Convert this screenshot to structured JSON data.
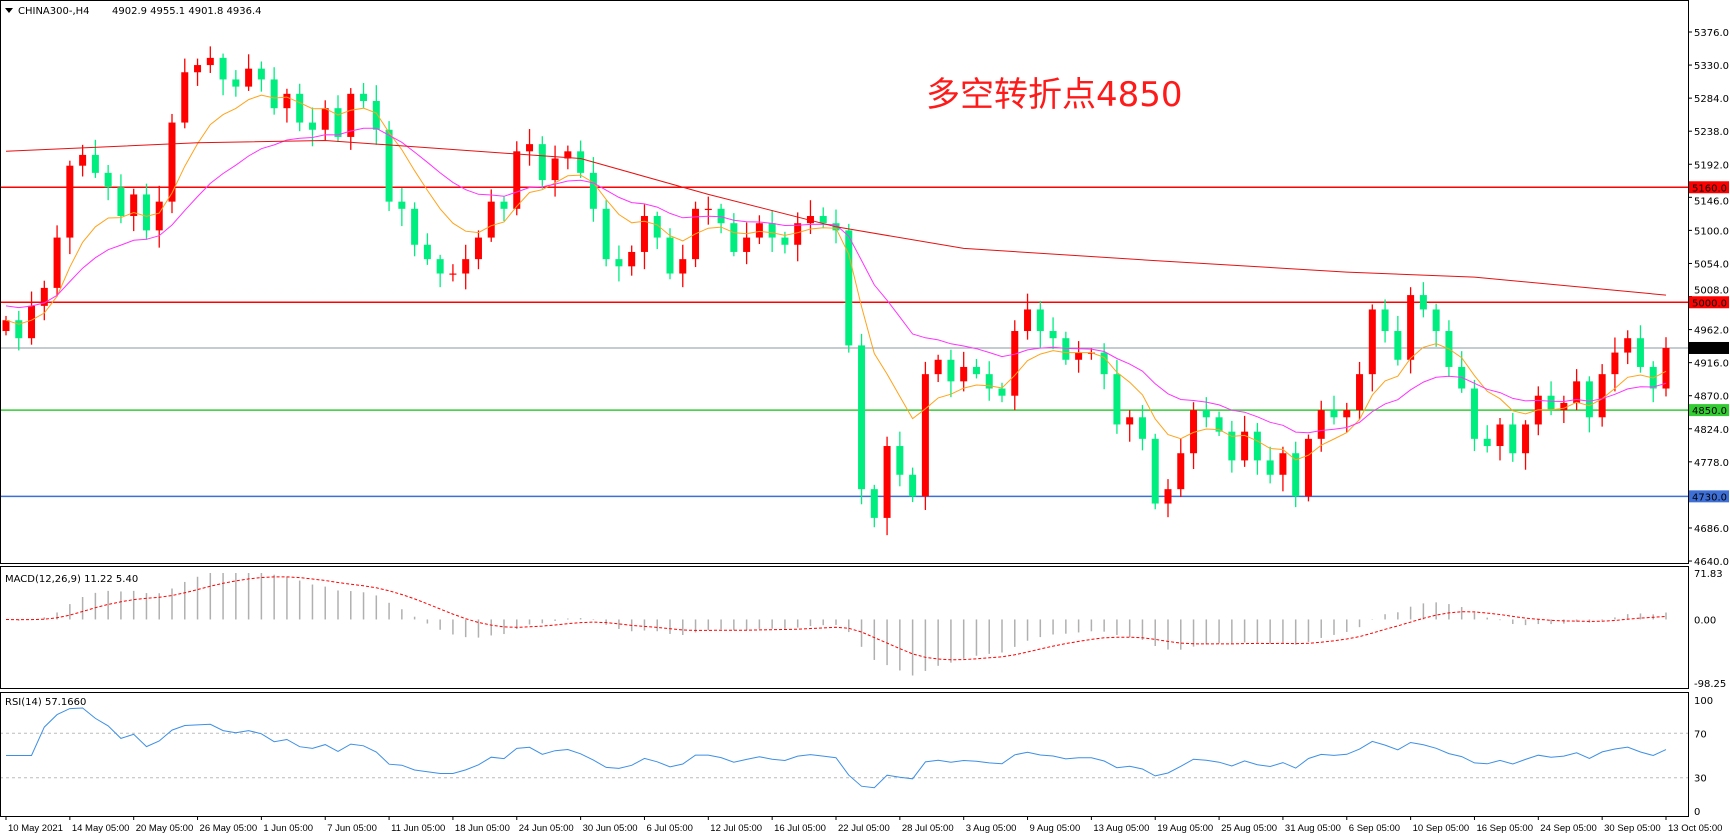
{
  "header": {
    "symbol": "CHINA300-,H4",
    "ohlc_text": "4902.9 4955.1 4901.8 4936.4"
  },
  "annotation": "多空转折点4850",
  "colors": {
    "up_candle": "#ff0000",
    "down_candle": "#00ee80",
    "ma_fast": "#ffa31a",
    "ma_mid": "#ff33ff",
    "ma_long": "#e81010",
    "macd_hist": "#b0b0b0",
    "macd_signal": "#ff0000",
    "rsi": "#3d8fe6",
    "level_5160": "#ff0000",
    "level_5000": "#ff0000",
    "level_4850": "#33cc33",
    "level_4730": "#3d6fd6",
    "current_price": "#8a9aa6"
  },
  "price_axis": {
    "ticks": [
      "5376.0",
      "5330.0",
      "5284.0",
      "5238.0",
      "5192.0",
      "5146.0",
      "5100.0",
      "5054.0",
      "5008.0",
      "4962.0",
      "4916.0",
      "4870.0",
      "4824.0",
      "4778.0",
      "4686.0",
      "4640.0"
    ],
    "range": [
      4640,
      5376
    ]
  },
  "levels": [
    {
      "value": 5160.0,
      "label": "5160.0",
      "color_key": "level_5160"
    },
    {
      "value": 5000.0,
      "label": "5000.0",
      "color_key": "level_5000"
    },
    {
      "value": 4850.0,
      "label": "4850.0",
      "color_key": "level_4850"
    },
    {
      "value": 4730.0,
      "label": "4730.0",
      "color_key": "level_4730"
    },
    {
      "value": 4936.4,
      "label": "4936.4",
      "color_key": "current_price"
    }
  ],
  "macd": {
    "label": "MACD(12,26,9) 11.22 5.40",
    "ticks": [
      "71.83",
      "0.00",
      "-98.25"
    ],
    "range": [
      -98.25,
      71.83
    ]
  },
  "rsi": {
    "label": "RSI(14) 57.1660",
    "ticks": [
      "100",
      "70",
      "30",
      "0"
    ],
    "levels": [
      70,
      30
    ]
  },
  "chart_data": {
    "type": "candlestick",
    "title": "CHINA300-,H4",
    "x_labels": [
      "10 May 2021",
      "14 May 05:00",
      "20 May 05:00",
      "26 May 05:00",
      "1 Jun 05:00",
      "7 Jun 05:00",
      "11 Jun 05:00",
      "18 Jun 05:00",
      "24 Jun 05:00",
      "30 Jun 05:00",
      "6 Jul 05:00",
      "12 Jul 05:00",
      "16 Jul 05:00",
      "22 Jul 05:00",
      "28 Jul 05:00",
      "3 Aug 05:00",
      "9 Aug 05:00",
      "13 Aug 05:00",
      "19 Aug 05:00",
      "25 Aug 05:00",
      "31 Aug 05:00",
      "6 Sep 05:00",
      "10 Sep 05:00",
      "16 Sep 05:00",
      "24 Sep 05:00",
      "30 Sep 05:00",
      "13 Oct 05:00"
    ],
    "first_open": 4960,
    "closes": [
      4975,
      4950,
      4995,
      5020,
      5090,
      5190,
      5205,
      5180,
      5160,
      5120,
      5150,
      5100,
      5140,
      5250,
      5320,
      5330,
      5340,
      5310,
      5300,
      5325,
      5310,
      5270,
      5290,
      5250,
      5240,
      5270,
      5230,
      5290,
      5280,
      5240,
      5140,
      5130,
      5080,
      5060,
      5040,
      5040,
      5060,
      5090,
      5140,
      5130,
      5210,
      5220,
      5170,
      5200,
      5210,
      5180,
      5130,
      5060,
      5050,
      5070,
      5120,
      5090,
      5040,
      5060,
      5130,
      5130,
      5110,
      5070,
      5090,
      5110,
      5090,
      5080,
      5110,
      5120,
      5110,
      5100,
      4940,
      4740,
      4700,
      4800,
      4760,
      4730,
      4900,
      4920,
      4890,
      4910,
      4900,
      4880,
      4870,
      4960,
      4990,
      4960,
      4950,
      4920,
      4930,
      4930,
      4900,
      4830,
      4840,
      4810,
      4720,
      4740,
      4790,
      4850,
      4840,
      4820,
      4780,
      4820,
      4780,
      4760,
      4790,
      4730,
      4810,
      4850,
      4840,
      4850,
      4900,
      4990,
      4960,
      4920,
      5010,
      4990,
      4960,
      4910,
      4880,
      4810,
      4800,
      4830,
      4790,
      4830,
      4870,
      4850,
      4860,
      4890,
      4840,
      4900,
      4930,
      4950,
      4910,
      4880,
      4936.4
    ],
    "ma_long": [
      {
        "date": "10 May 2021",
        "value": 5210
      },
      {
        "date": "26 May 05:00",
        "value": 5222
      },
      {
        "date": "7 Jun 05:00",
        "value": 5225
      },
      {
        "date": "30 Jun 05:00",
        "value": 5200
      },
      {
        "date": "12 Jul 05:00",
        "value": 5150
      },
      {
        "date": "22 Jul 05:00",
        "value": 5105
      },
      {
        "date": "3 Aug 05:00",
        "value": 5075
      },
      {
        "date": "19 Aug 05:00",
        "value": 5058
      },
      {
        "date": "6 Sep 05:00",
        "value": 5042
      },
      {
        "date": "16 Sep 05:00",
        "value": 5035
      },
      {
        "date": "13 Oct 05:00",
        "value": 5010
      }
    ],
    "ylim": [
      4640,
      5376
    ]
  }
}
